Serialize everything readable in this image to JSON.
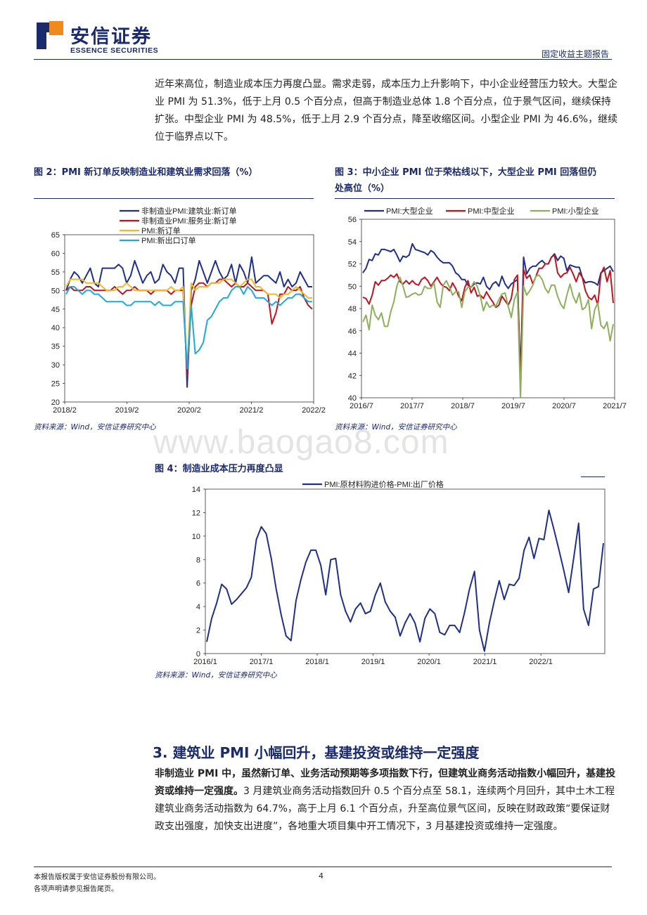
{
  "header": {
    "brand_cn": "安信证券",
    "brand_en": "ESSENCE SECURITIES",
    "report_type": "固定收益主题报告"
  },
  "intro_paragraph": "近年来高位，制造业成本压力再度凸显。需求走弱，成本压力上升影响下，中小企业经营压力较大。大型企业 PMI 为 51.3%，低于上月 0.5 个百分点，但高于制造业总体 1.8 个百分点，位于景气区间，继续保持扩张。中型企业 PMI 为 48.5%，低于上月 2.9 个百分点，降至收缩区间。小型企业 PMI 为 46.6%，继续位于临界点以下。",
  "watermark": "www.baogao8.com",
  "figures": {
    "fig2": {
      "title": "图 2：PMI 新订单反映制造业和建筑业需求回落（%）",
      "source": "资料来源：Wind，安信证券研究中心"
    },
    "fig3": {
      "title_line1": "图 3：中小企业 PMI 位于荣枯线以下，大型企业 PMI 回落但仍",
      "title_line2": "处高位（%）",
      "source": "资料来源：Wind，安信证券研究中心"
    },
    "fig4": {
      "title": "图 4：制造业成本压力再度凸显",
      "source": "资料来源：Wind，安信证券研究中心"
    }
  },
  "section": {
    "title": "3. 建筑业 PMI 小幅回升，基建投资或维持一定强度",
    "bold_lead": "非制造业 PMI 中，虽然新订单、业务活动预期等多项指数下行，但建筑业商务活动指数小幅回升，基建投资或维持一定强度。",
    "body": "3 月建筑业商务活动指数回升 0.5 个百分点至 58.1，连续两个月回升，其中土木工程建筑业商务活动指数为 64.7%，高于上月 6.1 个百分点，升至高位景气区间，反映在财政政策“要保证财政支出强度，加快支出进度”，各地重大项目集中开工情况下，3 月基建投资或维持一定强度。"
  },
  "footer": {
    "copyright": "本报告版权属于安信证券股份有限公司。",
    "disclaimer": "各项声明请参见报告尾页。",
    "page": "4"
  },
  "chart_data": [
    {
      "id": "fig2",
      "type": "line",
      "ylim": [
        20,
        65
      ],
      "yticks": [
        "65",
        "60",
        "55",
        "50",
        "45",
        "40",
        "35",
        "30",
        "25",
        "20"
      ],
      "xticks": [
        "2018/2",
        "2019/2",
        "2020/2",
        "2021/2",
        "2022/2"
      ],
      "series": [
        {
          "name": "非制造业PMI:建筑业:新订单",
          "color": "#1f2f8c",
          "values": [
            50,
            53,
            55,
            54,
            52,
            54,
            56,
            52,
            51,
            56,
            56,
            56,
            56,
            57,
            56,
            52,
            54,
            58,
            55,
            52,
            54,
            55,
            52,
            53,
            57,
            55,
            54,
            52,
            56,
            56,
            24,
            50,
            53,
            58,
            55,
            52,
            55,
            58,
            55,
            53,
            54,
            57,
            52,
            57,
            55,
            52,
            59,
            52,
            53,
            54,
            54,
            53,
            52,
            55,
            51,
            53,
            51,
            52,
            55,
            53,
            51,
            51
          ]
        },
        {
          "name": "非制造业PMI:服务业:新订单",
          "color": "#c0141e",
          "values": [
            50,
            51,
            50,
            50,
            50,
            51,
            51,
            50,
            50,
            50,
            50,
            50,
            51,
            50,
            49,
            50,
            50,
            51,
            50,
            50,
            50,
            49,
            50,
            50,
            50,
            50,
            49,
            50,
            50,
            50,
            27,
            46,
            51,
            52,
            52,
            51,
            52,
            52,
            53,
            53,
            52,
            51,
            52,
            51,
            51,
            52,
            51,
            50,
            50,
            50,
            49,
            41,
            44,
            49,
            49,
            51,
            50,
            50,
            51,
            48,
            46,
            45
          ]
        },
        {
          "name": "PMI:新订单",
          "color": "#f6b81e",
          "values": [
            51,
            53,
            53,
            53,
            53,
            52,
            52,
            52,
            52,
            51,
            50,
            50,
            50,
            51,
            51,
            52,
            51,
            50,
            50,
            50,
            50,
            50,
            50,
            50,
            50,
            50,
            51,
            50,
            50,
            51,
            29,
            52,
            50,
            51,
            51,
            51,
            52,
            52,
            52,
            53,
            53,
            53,
            52,
            51,
            52,
            53,
            53,
            51,
            51,
            50,
            49,
            49,
            49,
            48,
            49,
            49,
            50,
            51,
            50,
            49,
            48,
            48
          ]
        },
        {
          "name": "PMI:新出口订单",
          "color": "#1fa8e0",
          "values": [
            49,
            51,
            51,
            50,
            49,
            50,
            50,
            49,
            49,
            48,
            47,
            47,
            47,
            47,
            47,
            46,
            46,
            47,
            47,
            47,
            47,
            47,
            46,
            47,
            46,
            46,
            46,
            47,
            47,
            47,
            29,
            46,
            33,
            34,
            36,
            42,
            43,
            45,
            47,
            48,
            48,
            50,
            51,
            51,
            49,
            51,
            50,
            48,
            48,
            48,
            47,
            46,
            47,
            46,
            47,
            48,
            48,
            49,
            49,
            48,
            47,
            47
          ]
        }
      ]
    },
    {
      "id": "fig3",
      "type": "line",
      "ylim": [
        40,
        56
      ],
      "yticks": [
        "56",
        "54",
        "52",
        "50",
        "48",
        "46",
        "44",
        "42",
        "40"
      ],
      "xticks": [
        "2016/7",
        "2017/7",
        "2018/7",
        "2019/7",
        "2020/7",
        "2021/7"
      ],
      "series": [
        {
          "name": "PMI:大型企业",
          "color": "#1f2f8c",
          "values": [
            51.2,
            51.6,
            52.4,
            52.3,
            52.9,
            52.8,
            53.3,
            53.3,
            53.2,
            53.1,
            53.3,
            52.8,
            52.2,
            52.7,
            52.6,
            52.8,
            53.8,
            53.3,
            53.2,
            53.1,
            53.0,
            52.8,
            53.2,
            53.0,
            52.6,
            52.3,
            52.1,
            52.1,
            52.1,
            51.8,
            51.2,
            51.0,
            50.6,
            50.6,
            50.1,
            49.9,
            50.2,
            50.3,
            50.2,
            50.8,
            50.0,
            49.7,
            50.2,
            50.4,
            50.0,
            50.9,
            50.2,
            49.8,
            50.2,
            50.4,
            50.6,
            42.0,
            52.6,
            51.1,
            51.6,
            51.8,
            51.8,
            52.1,
            52.3,
            52.0,
            52.0,
            52.6,
            52.9,
            52.3,
            52.7,
            52.5,
            51.4,
            51.9,
            51.8,
            51.7,
            51.7,
            50.8,
            50.3,
            50.4,
            50.4,
            50.3,
            50.1,
            51.2,
            51.4,
            51.6,
            51.8,
            51.3
          ]
        },
        {
          "name": "PMI:中型企业",
          "color": "#c0141e",
          "values": [
            49.0,
            48.9,
            48.4,
            49.2,
            50.4,
            50.1,
            50.5,
            50.5,
            50.7,
            51.0,
            50.8,
            51.1,
            50.4,
            50.2,
            50.5,
            50.2,
            50.5,
            50.2,
            50.1,
            50.6,
            50.8,
            50.5,
            50.0,
            50.4,
            50.8,
            50.3,
            50.0,
            49.9,
            49.6,
            50.3,
            49.8,
            49.1,
            48.7,
            49.9,
            50.5,
            49.4,
            49.9,
            49.1,
            49.2,
            48.9,
            49.5,
            49.0,
            48.6,
            48.1,
            48.3,
            49.1,
            48.7,
            48.3,
            48.9,
            50.6,
            51.0,
            41.0,
            51.5,
            50.7,
            51.0,
            50.2,
            50.9,
            51.6,
            51.6,
            52.0,
            52.0,
            52.6,
            52.8,
            51.2,
            50.8,
            51.1,
            51.2,
            51.7,
            51.1,
            50.4,
            51.2,
            50.8,
            49.6,
            49.0,
            48.8,
            49.2,
            48.3,
            51.1,
            51.7,
            50.4,
            51.4,
            48.5
          ]
        },
        {
          "name": "PMI:小型企业",
          "color": "#8db05a",
          "values": [
            46.8,
            47.4,
            46.1,
            48.3,
            47.4,
            47.0,
            47.6,
            46.4,
            46.4,
            47.7,
            48.6,
            50.0,
            50.8,
            50.0,
            49.0,
            49.1,
            49.3,
            49.4,
            49.2,
            49.3,
            50.0,
            49.8,
            49.8,
            50.3,
            48.6,
            48.1,
            50.1,
            50.5,
            49.9,
            49.2,
            49.5,
            49.5,
            48.1,
            49.5,
            49.9,
            49.9,
            50.4,
            50.0,
            49.1,
            47.8,
            48.6,
            48.1,
            48.3,
            48.2,
            48.8,
            49.3,
            49.4,
            48.2,
            47.2,
            48.8,
            49.5,
            40.0,
            50.0,
            49.2,
            49.6,
            50.1,
            50.9,
            51.0,
            50.6,
            49.8,
            49.4,
            50.1,
            50.1,
            49.1,
            48.4,
            48.0,
            49.2,
            50.2,
            49.1,
            48.5,
            49.4,
            47.9,
            48.1,
            48.8,
            46.2,
            47.9,
            48.5,
            46.5,
            46.2,
            46.8,
            45.1,
            46.6
          ]
        }
      ]
    },
    {
      "id": "fig4",
      "type": "line",
      "ylim": [
        0,
        14
      ],
      "yticks": [
        "14",
        "12",
        "10",
        "8",
        "6",
        "4",
        "2",
        "0"
      ],
      "xticks": [
        "2016/1",
        "2017/1",
        "2018/1",
        "2019/1",
        "2020/1",
        "2021/1",
        "2022/1"
      ],
      "series": [
        {
          "name": "PMI:原材料购进价格-PMI:出厂价格",
          "color": "#1f2f8c",
          "values": [
            1.0,
            3.0,
            4.3,
            5.9,
            5.5,
            4.2,
            4.6,
            5.1,
            5.6,
            6.5,
            9.7,
            10.8,
            10.2,
            8.1,
            5.5,
            3.3,
            1.5,
            1.1,
            4.5,
            6.3,
            7.8,
            8.8,
            8.8,
            7.5,
            5.0,
            8.0,
            8.1,
            5.0,
            3.6,
            2.7,
            3.8,
            4.3,
            3.4,
            3.6,
            5.0,
            6.0,
            4.4,
            3.6,
            3.1,
            1.5,
            2.6,
            3.4,
            2.6,
            1.0,
            3.0,
            3.8,
            3.4,
            1.8,
            1.6,
            2.4,
            2.4,
            1.8,
            3.5,
            5.5,
            7.0,
            2.0,
            0.2,
            2.6,
            4.5,
            6.2,
            4.6,
            5.9,
            5.8,
            6.4,
            8.8,
            9.9,
            8.1,
            9.8,
            9.7,
            12.2,
            10.6,
            8.9,
            7.1,
            5.2,
            8.1,
            11.1,
            3.8,
            2.4,
            5.5,
            5.7,
            9.4
          ]
        }
      ]
    }
  ]
}
